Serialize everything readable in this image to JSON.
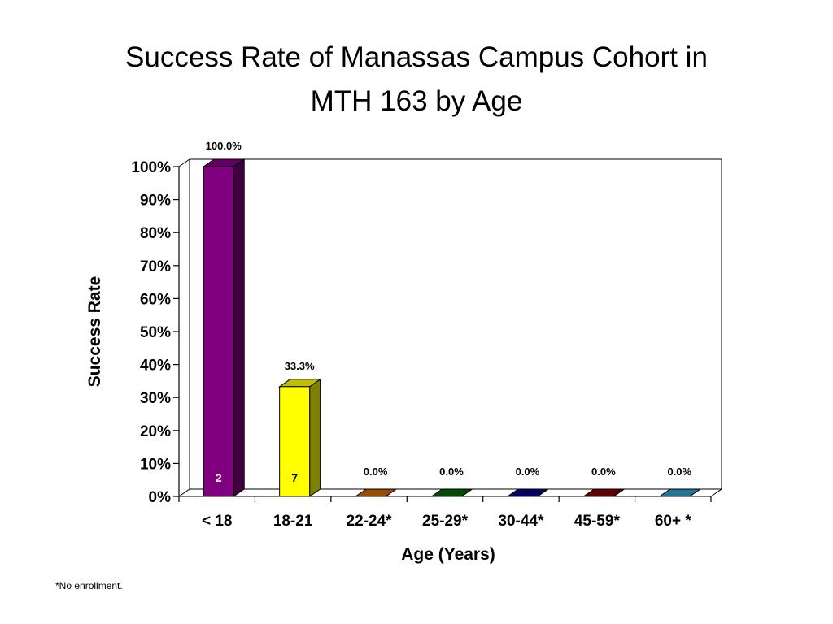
{
  "chart_data": {
    "type": "bar",
    "style": "3d-bar",
    "title_lines": [
      "Success Rate of Manassas Campus Cohort in",
      "MTH 163 by Age"
    ],
    "xlabel": "Age (Years)",
    "ylabel": "Success Rate",
    "ylim": [
      0,
      100
    ],
    "y_ticks": [
      0,
      10,
      20,
      30,
      40,
      50,
      60,
      70,
      80,
      90,
      100
    ],
    "y_tick_suffix": "%",
    "grid": false,
    "legend": "none",
    "categories": [
      "< 18",
      "18-21",
      "22-24*",
      "25-29*",
      "30-44*",
      "45-59*",
      "60+ *"
    ],
    "values": [
      100.0,
      33.3,
      0.0,
      0.0,
      0.0,
      0.0,
      0.0
    ],
    "value_labels": [
      "100.0%",
      "33.3%",
      "0.0%",
      "0.0%",
      "0.0%",
      "0.0%",
      "0.0%"
    ],
    "n_labels": [
      "2",
      "7",
      "",
      "",
      "",
      "",
      ""
    ],
    "colors": [
      "#800080",
      "#FFFF00",
      "#CC6600",
      "#006600",
      "#000080",
      "#800000",
      "#3399CC"
    ]
  },
  "footnote": "*No enrollment."
}
